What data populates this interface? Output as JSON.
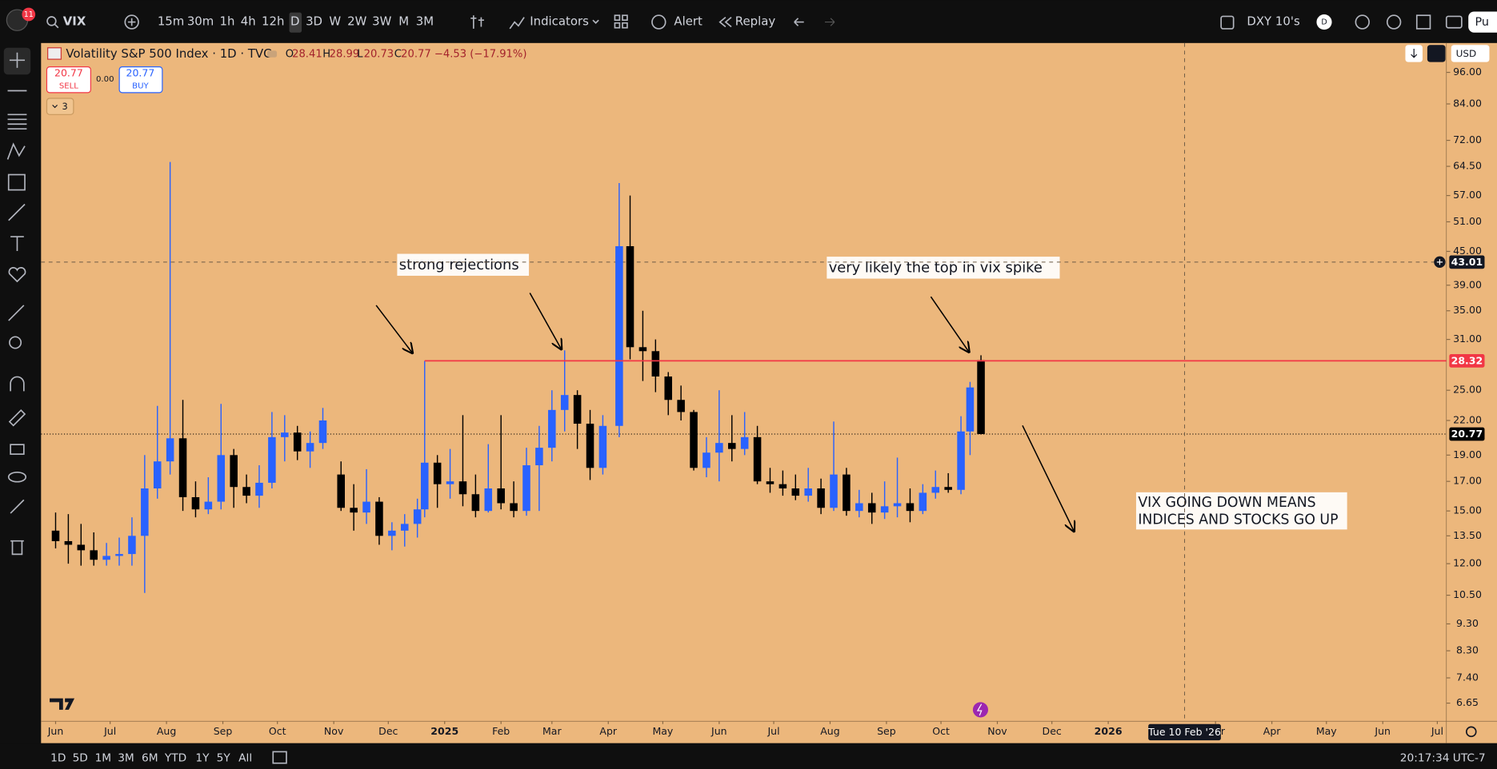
{
  "ui": {
    "badge": "11",
    "symbol": "VIX",
    "timeframes": [
      "15m",
      "30m",
      "1h",
      "4h",
      "12h",
      "D",
      "3D",
      "W",
      "2W",
      "3W",
      "M",
      "3M"
    ],
    "indicators": "Indicators",
    "alert": "Alert",
    "replay": "Replay",
    "compare": "DXY 10's",
    "compare_badge": "D",
    "publish": "Pu",
    "legend": {
      "title": "Volatility S&P 500 Index · 1D · TVC",
      "labels": [
        "O",
        "H",
        "L",
        "C"
      ],
      "change": "−4.53 (−17.91%)"
    },
    "order": {
      "sell_price": "20.77",
      "sell": "SELL",
      "spread": "0.00",
      "buy_price": "20.77",
      "buy": "BUY",
      "count": "3"
    },
    "currency": "USD",
    "ranges": [
      "1D",
      "5D",
      "1M",
      "3M",
      "6M",
      "YTD",
      "1Y",
      "5Y",
      "All"
    ],
    "clock": "20:17:34 UTC-7"
  },
  "chart_data": {
    "type": "candlestick",
    "log_scale": true,
    "grid": false,
    "up_color": "#2962ff",
    "down_color": "#000000",
    "x": [
      0,
      7,
      14,
      21,
      28,
      35,
      42,
      49,
      56,
      63,
      70,
      77,
      84,
      91,
      98,
      105,
      112,
      119,
      126,
      133,
      140,
      147,
      157,
      164,
      171,
      178,
      185,
      192,
      199,
      203,
      210,
      217,
      224,
      231,
      238,
      245,
      252,
      259,
      266,
      273,
      280,
      287,
      294,
      301,
      310,
      316,
      323,
      330,
      337,
      344,
      351,
      358,
      365,
      372,
      379,
      386,
      393,
      400,
      407,
      414,
      421,
      428,
      435,
      442,
      449,
      456,
      463,
      470,
      477,
      484,
      491,
      498,
      503,
      509
    ],
    "open": [
      13.8,
      13.2,
      13.0,
      12.7,
      12.2,
      12.4,
      12.5,
      13.5,
      16.5,
      18.5,
      20.4,
      15.9,
      15.1,
      15.6,
      19.0,
      16.6,
      16.0,
      16.9,
      20.5,
      20.9,
      19.3,
      20.0,
      17.5,
      15.2,
      14.9,
      15.6,
      13.5,
      13.8,
      14.2,
      15.1,
      18.4,
      16.8,
      17.0,
      16.1,
      15.0,
      16.5,
      15.5,
      15.0,
      18.2,
      19.6,
      23.0,
      24.5,
      21.7,
      18.0,
      21.5,
      46.0,
      30.0,
      29.5,
      26.5,
      24.0,
      22.8,
      18.0,
      19.2,
      20.0,
      19.5,
      20.5,
      17.0,
      16.8,
      16.5,
      16.0,
      16.5,
      15.2,
      17.5,
      15.0,
      15.5,
      14.9,
      15.3,
      15.5,
      15.0,
      16.2,
      16.6,
      16.4,
      21.0,
      28.41
    ],
    "high": [
      14.9,
      14.8,
      14.2,
      13.7,
      13.1,
      13.4,
      14.6,
      19.0,
      23.4,
      65.7,
      24.0,
      17.0,
      17.3,
      23.6,
      19.5,
      17.5,
      18.2,
      22.8,
      22.5,
      21.5,
      21.0,
      23.2,
      18.5,
      16.8,
      17.9,
      15.9,
      14.3,
      14.8,
      15.8,
      28.3,
      19.0,
      19.5,
      22.5,
      17.5,
      19.9,
      22.5,
      17.0,
      19.6,
      21.5,
      25.0,
      29.6,
      25.0,
      23.0,
      22.5,
      60.1,
      57.0,
      35.0,
      31.0,
      27.0,
      25.5,
      23.0,
      20.5,
      25.0,
      22.5,
      22.8,
      21.5,
      18.0,
      17.8,
      17.5,
      18.0,
      17.2,
      21.9,
      18.0,
      16.4,
      16.2,
      17.0,
      18.8,
      16.5,
      16.8,
      17.8,
      17.6,
      22.4,
      25.9,
      28.99
    ],
    "low": [
      12.8,
      12.0,
      11.9,
      11.9,
      11.9,
      11.9,
      11.9,
      10.6,
      15.8,
      17.5,
      15.0,
      14.6,
      14.8,
      15.1,
      15.2,
      15.5,
      15.2,
      16.5,
      18.5,
      18.6,
      18.0,
      19.5,
      15.0,
      13.8,
      14.2,
      13.0,
      12.7,
      12.9,
      13.4,
      14.6,
      15.2,
      15.8,
      15.3,
      14.6,
      14.9,
      15.1,
      14.6,
      14.7,
      15.0,
      18.5,
      21.0,
      19.5,
      17.1,
      17.5,
      20.5,
      28.5,
      26.0,
      24.8,
      22.5,
      22.0,
      17.8,
      17.3,
      17.0,
      18.5,
      19.0,
      16.8,
      16.2,
      16.0,
      15.7,
      15.6,
      14.8,
      15.0,
      14.7,
      14.6,
      14.2,
      14.5,
      14.6,
      14.3,
      14.8,
      15.8,
      16.2,
      16.1,
      19.0,
      20.73
    ],
    "close": [
      13.2,
      13.0,
      12.7,
      12.2,
      12.4,
      12.5,
      13.5,
      16.5,
      18.5,
      20.4,
      15.9,
      15.1,
      15.6,
      19.0,
      16.6,
      16.0,
      16.9,
      20.5,
      20.9,
      19.3,
      20.0,
      22.0,
      15.2,
      14.9,
      15.6,
      13.5,
      13.8,
      14.2,
      15.1,
      18.4,
      16.8,
      17.0,
      16.1,
      15.0,
      16.5,
      15.5,
      15.0,
      18.2,
      19.6,
      23.0,
      24.5,
      21.7,
      18.0,
      21.5,
      46.0,
      30.0,
      29.5,
      26.5,
      24.0,
      22.8,
      18.0,
      19.2,
      20.0,
      19.5,
      20.5,
      17.0,
      16.8,
      16.5,
      16.0,
      16.5,
      15.2,
      17.5,
      15.0,
      15.5,
      14.9,
      15.3,
      15.5,
      15.0,
      16.2,
      16.6,
      16.4,
      21.0,
      25.3,
      20.77
    ],
    "xlim": [
      -8,
      765
    ],
    "xticks": [
      {
        "value": 0,
        "label": "Jun"
      },
      {
        "value": 30,
        "label": "Jul"
      },
      {
        "value": 61,
        "label": "Aug"
      },
      {
        "value": 92,
        "label": "Sep"
      },
      {
        "value": 122,
        "label": "Oct"
      },
      {
        "value": 153,
        "label": "Nov"
      },
      {
        "value": 183,
        "label": "Dec"
      },
      {
        "value": 214,
        "label": "2025"
      },
      {
        "value": 245,
        "label": "Feb"
      },
      {
        "value": 273,
        "label": "Mar"
      },
      {
        "value": 304,
        "label": "Apr"
      },
      {
        "value": 334,
        "label": "May"
      },
      {
        "value": 365,
        "label": "Jun"
      },
      {
        "value": 395,
        "label": "Jul"
      },
      {
        "value": 426,
        "label": "Aug"
      },
      {
        "value": 457,
        "label": "Sep"
      },
      {
        "value": 487,
        "label": "Oct"
      },
      {
        "value": 518,
        "label": "Nov"
      },
      {
        "value": 548,
        "label": "Dec"
      },
      {
        "value": 579,
        "label": "2026"
      },
      {
        "value": 638,
        "label": "Mar"
      },
      {
        "value": 669,
        "label": "Apr"
      },
      {
        "value": 699,
        "label": "May"
      },
      {
        "value": 730,
        "label": "Jun"
      },
      {
        "value": 760,
        "label": "Jul"
      }
    ],
    "ylim": [
      6.16,
      108.7
    ],
    "yticks": [
      {
        "value": 96,
        "label": "96.00"
      },
      {
        "value": 84,
        "label": "84.00"
      },
      {
        "value": 72,
        "label": "72.00"
      },
      {
        "value": 64.5,
        "label": "64.50"
      },
      {
        "value": 57,
        "label": "57.00"
      },
      {
        "value": 51,
        "label": "51.00"
      },
      {
        "value": 45,
        "label": "45.00"
      },
      {
        "value": 39,
        "label": "39.00"
      },
      {
        "value": 35,
        "label": "35.00"
      },
      {
        "value": 31,
        "label": "31.00"
      },
      {
        "value": 25,
        "label": "25.00"
      },
      {
        "value": 22,
        "label": "22.00"
      },
      {
        "value": 19,
        "label": "19.00"
      },
      {
        "value": 17,
        "label": "17.00"
      },
      {
        "value": 15,
        "label": "15.00"
      },
      {
        "value": 13.5,
        "label": "13.50"
      },
      {
        "value": 12,
        "label": "12.00"
      },
      {
        "value": 10.5,
        "label": "10.50"
      },
      {
        "value": 9.3,
        "label": "9.30"
      },
      {
        "value": 8.3,
        "label": "8.30"
      },
      {
        "value": 7.4,
        "label": "7.40"
      },
      {
        "value": 6.65,
        "label": "6.65"
      }
    ],
    "level": {
      "value": 28.32,
      "start": 203,
      "color": "#f23645"
    },
    "last_price": 20.77,
    "crosshair": {
      "x": 621,
      "x_label": "Tue 10 Feb '26",
      "y": 43.01
    },
    "annotations": [
      {
        "text": "strong rejections"
      },
      {
        "text": "very likely the top in vix spike"
      },
      {
        "text": [
          "VIX GOING DOWN MEANS",
          "INDICES AND STOCKS GO UP"
        ]
      }
    ]
  }
}
